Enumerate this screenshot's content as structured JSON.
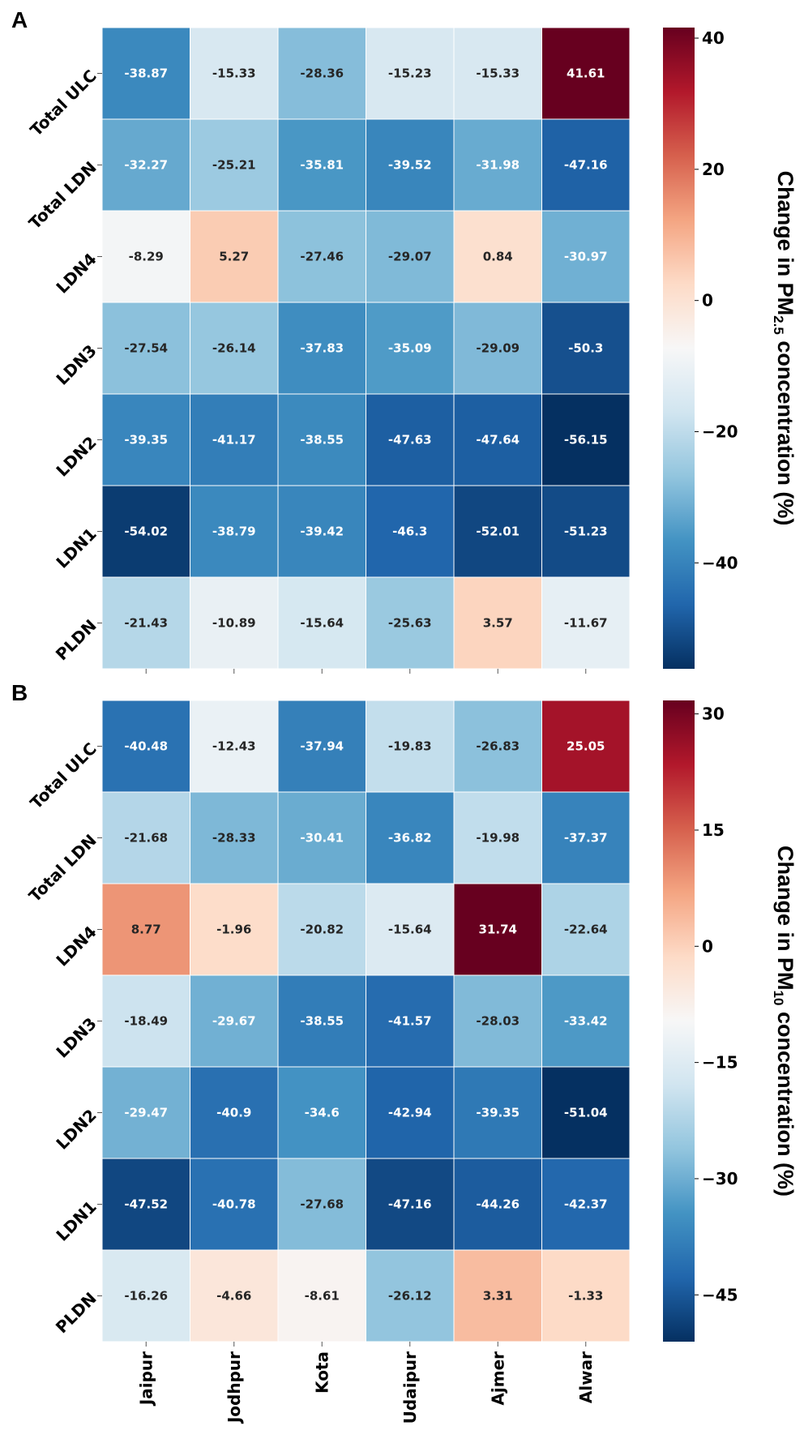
{
  "chart_data": [
    {
      "type": "heatmap",
      "panel_label": "A",
      "rows": [
        "Total ULC",
        "Total LDN",
        "LDN4",
        "LDN3",
        "LDN2",
        "LDN1",
        "PLDN"
      ],
      "columns": [
        "Jaipur",
        "Jodhpur",
        "Kota",
        "Udaipur",
        "Ajmer",
        "Alwar"
      ],
      "values": [
        [
          -38.87,
          -15.33,
          -28.36,
          -15.23,
          -15.33,
          41.61
        ],
        [
          -32.27,
          -25.21,
          -35.81,
          -39.52,
          -31.98,
          -47.16
        ],
        [
          -8.29,
          5.27,
          -27.46,
          -29.07,
          0.84,
          -30.97
        ],
        [
          -27.54,
          -26.14,
          -37.83,
          -35.09,
          -29.09,
          -50.3
        ],
        [
          -39.35,
          -41.17,
          -38.55,
          -47.63,
          -47.64,
          -56.15
        ],
        [
          -54.02,
          -38.79,
          -39.42,
          -46.3,
          -52.01,
          -51.23
        ],
        [
          -21.43,
          -10.89,
          -15.64,
          -25.63,
          3.57,
          -11.67
        ]
      ],
      "value_labels": [
        [
          "-38.87",
          "-15.33",
          "-28.36",
          "-15.23",
          "-15.33",
          "41.61"
        ],
        [
          "-32.27",
          "-25.21",
          "-35.81",
          "-39.52",
          "-31.98",
          "-47.16"
        ],
        [
          "-8.29",
          "5.27",
          "-27.46",
          "-29.07",
          "0.84",
          "-30.97"
        ],
        [
          "-27.54",
          "-26.14",
          "-37.83",
          "-35.09",
          "-29.09",
          "-50.3"
        ],
        [
          "-39.35",
          "-41.17",
          "-38.55",
          "-47.63",
          "-47.64",
          "-56.15"
        ],
        [
          "-54.02",
          "-38.79",
          "-39.42",
          "-46.3",
          "-52.01",
          "-51.23"
        ],
        [
          "-21.43",
          "-10.89",
          "-15.64",
          "-25.63",
          "3.57",
          "-11.67"
        ]
      ],
      "colormap": "RdBu_r",
      "vmin": -56.15,
      "vmax": 41.61,
      "colorbar": {
        "ticks": [
          40,
          20,
          0,
          -20,
          -40
        ],
        "tick_labels": [
          "40",
          "20",
          "0",
          "−20",
          "−40"
        ],
        "label_prefix": "Change in PM",
        "label_sub": "2.5",
        "label_suffix": " concentration (%)"
      },
      "show_xticklabels": false
    },
    {
      "type": "heatmap",
      "panel_label": "B",
      "rows": [
        "Total ULC",
        "Total LDN",
        "LDN4",
        "LDN3",
        "LDN2",
        "LDN1",
        "PLDN"
      ],
      "columns": [
        "Jaipur",
        "Jodhpur",
        "Kota",
        "Udaipur",
        "Ajmer",
        "Alwar"
      ],
      "values": [
        [
          -40.48,
          -12.43,
          -37.94,
          -19.83,
          -26.83,
          25.05
        ],
        [
          -21.68,
          -28.33,
          -30.41,
          -36.82,
          -19.98,
          -37.37
        ],
        [
          8.77,
          -1.96,
          -20.82,
          -15.64,
          31.74,
          -22.64
        ],
        [
          -18.49,
          -29.67,
          -38.55,
          -41.57,
          -28.03,
          -33.42
        ],
        [
          -29.47,
          -40.9,
          -34.6,
          -42.94,
          -39.35,
          -51.04
        ],
        [
          -47.52,
          -40.78,
          -27.68,
          -47.16,
          -44.26,
          -42.37
        ],
        [
          -16.26,
          -4.66,
          -8.61,
          -26.12,
          3.31,
          -1.33
        ]
      ],
      "value_labels": [
        [
          "-40.48",
          "-12.43",
          "-37.94",
          "-19.83",
          "-26.83",
          "25.05"
        ],
        [
          "-21.68",
          "-28.33",
          "-30.41",
          "-36.82",
          "-19.98",
          "-37.37"
        ],
        [
          "8.77",
          "-1.96",
          "-20.82",
          "-15.64",
          "31.74",
          "-22.64"
        ],
        [
          "-18.49",
          "-29.67",
          "-38.55",
          "-41.57",
          "-28.03",
          "-33.42"
        ],
        [
          "-29.47",
          "-40.9",
          "-34.6",
          "-42.94",
          "-39.35",
          "-51.04"
        ],
        [
          "-47.52",
          "-40.78",
          "-27.68",
          "-47.16",
          "-44.26",
          "-42.37"
        ],
        [
          "-16.26",
          "-4.66",
          "-8.61",
          "-26.12",
          "3.31",
          "-1.33"
        ]
      ],
      "colormap": "RdBu_r",
      "vmin": -51.04,
      "vmax": 31.74,
      "colorbar": {
        "ticks": [
          30,
          15,
          0,
          -15,
          -30,
          -45
        ],
        "tick_labels": [
          "30",
          "15",
          "0",
          "−15",
          "−30",
          "−45"
        ],
        "label_prefix": "Change in PM",
        "label_sub": "10",
        "label_suffix": " concentration (%)"
      },
      "show_xticklabels": true
    }
  ]
}
